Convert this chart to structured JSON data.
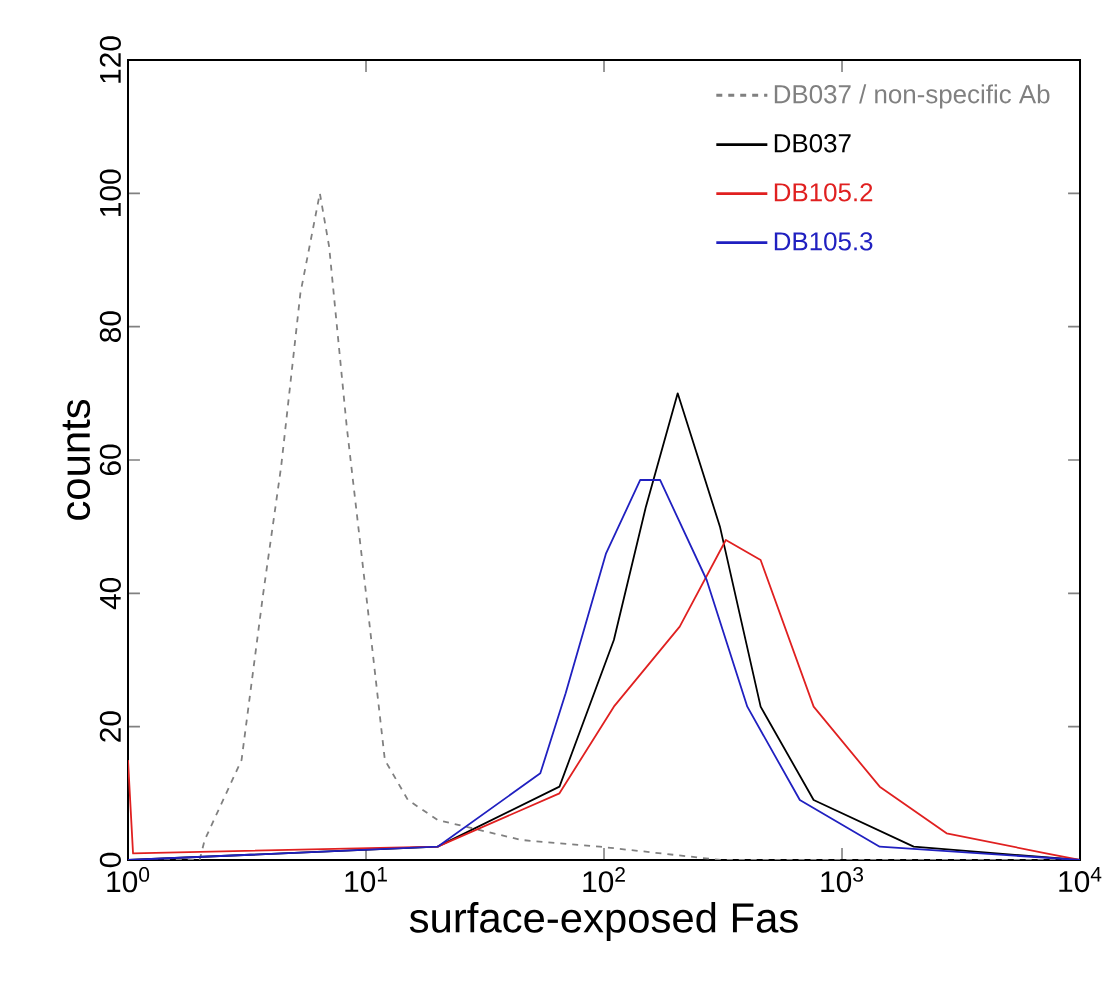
{
  "chart_data": {
    "type": "line",
    "xlabel": "surface-exposed Fas",
    "ylabel": "counts",
    "log": "x",
    "xlim": [
      1,
      10000
    ],
    "ylim": [
      0,
      120
    ],
    "xticks": [
      {
        "value": 1,
        "label": "10$^{0}$"
      },
      {
        "value": 10,
        "label": "10$^{1}$"
      },
      {
        "value": 100,
        "label": "10$^{2}$"
      },
      {
        "value": 1000,
        "label": "10$^{3}$"
      },
      {
        "value": 10000,
        "label": "10$^{4}$"
      }
    ],
    "yticks": [
      0,
      20,
      40,
      60,
      80,
      100,
      120
    ],
    "grid": false,
    "legend": "top right",
    "marker": "none",
    "series": [
      {
        "name": "DB037 / non-specific Ab",
        "color": "#808080",
        "line_style": "dashed",
        "x": [
          1,
          2,
          2.1,
          3,
          3.7,
          4.4,
          5.3,
          6.4,
          7,
          8.3,
          10,
          12,
          15,
          20,
          45,
          96,
          310,
          10000
        ],
        "values": [
          0,
          0,
          3,
          15,
          40,
          59,
          85,
          100,
          92,
          65,
          40,
          15,
          9,
          6,
          3,
          2,
          0,
          0
        ]
      },
      {
        "name": "DB037",
        "color": "#000000",
        "line_style": "solid",
        "x": [
          1,
          20,
          65,
          110,
          150,
          204,
          307,
          455,
          760,
          2000,
          10000
        ],
        "values": [
          0,
          2,
          11,
          33,
          53,
          70,
          50,
          23,
          9,
          2,
          0
        ]
      },
      {
        "name": "DB105.2",
        "color": "#e02020",
        "line_style": "solid",
        "x": [
          1,
          1.05,
          20,
          65,
          110,
          208,
          325,
          455,
          760,
          1440,
          2750,
          7200,
          10000
        ],
        "values": [
          15,
          1,
          2,
          10,
          23,
          35,
          48,
          45,
          23,
          11,
          4,
          1,
          0
        ]
      },
      {
        "name": "DB105.3",
        "color": "#2020c0",
        "line_style": "solid",
        "x": [
          1,
          20,
          54,
          69,
          102,
          142,
          172,
          270,
          400,
          665,
          1440,
          10000
        ],
        "values": [
          0,
          2,
          13,
          25,
          46,
          57,
          57,
          42,
          23,
          9,
          2,
          0
        ]
      }
    ]
  }
}
